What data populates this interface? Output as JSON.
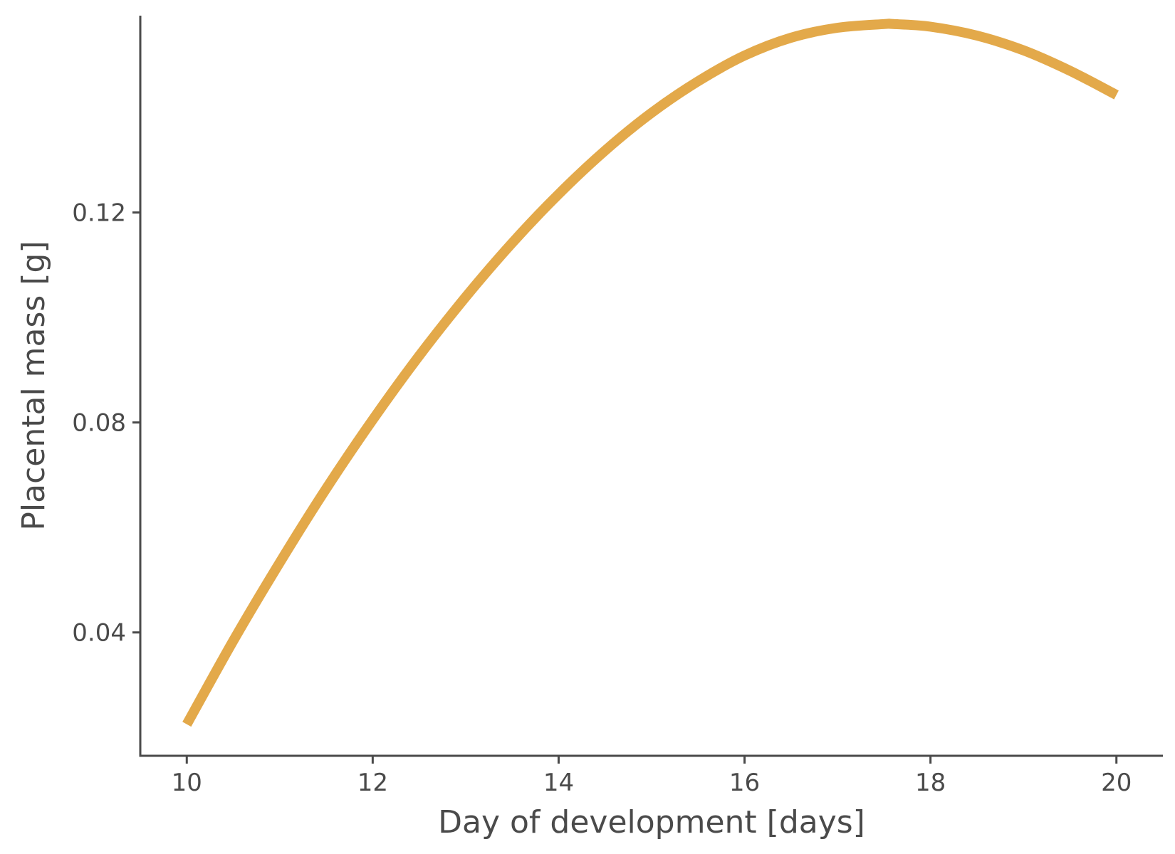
{
  "chart_data": {
    "type": "line",
    "title": "",
    "xlabel": "Day of development [days]",
    "ylabel": "Placental mass [g]",
    "xlim": [
      9.5,
      20.5
    ],
    "ylim": [
      0.0165,
      0.1575
    ],
    "x_ticks": [
      10,
      12,
      14,
      16,
      18,
      20
    ],
    "x_tick_labels": [
      "10",
      "12",
      "14",
      "16",
      "18",
      "20"
    ],
    "y_ticks": [
      0.04,
      0.08,
      0.12
    ],
    "y_tick_labels": [
      "0.04",
      "0.08",
      "0.12"
    ],
    "grid": false,
    "legend": "none",
    "series": [
      {
        "color": "#E3A94A",
        "x": [
          10,
          10.5,
          11,
          11.5,
          12,
          12.5,
          13,
          13.5,
          14,
          14.5,
          15,
          15.5,
          16,
          16.5,
          17,
          17.5,
          17.6,
          18,
          18.5,
          19,
          19.5,
          20
        ],
        "y": [
          0.0225,
          0.0384,
          0.0533,
          0.0674,
          0.0805,
          0.0927,
          0.1039,
          0.1142,
          0.1235,
          0.1318,
          0.139,
          0.145,
          0.1499,
          0.1533,
          0.1552,
          0.1559,
          0.1559,
          0.1554,
          0.1537,
          0.1509,
          0.147,
          0.1424
        ]
      }
    ]
  }
}
